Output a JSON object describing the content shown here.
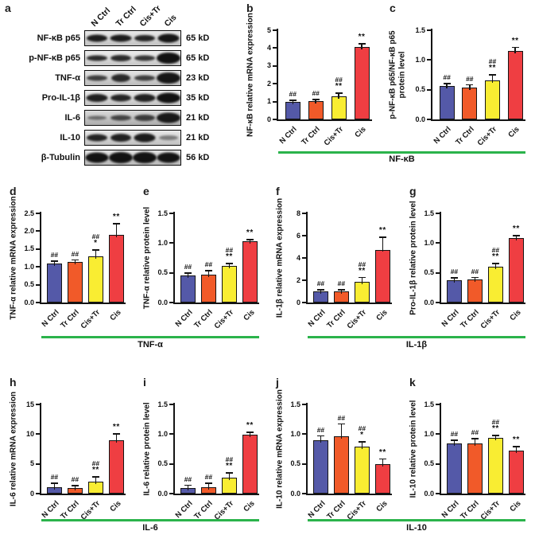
{
  "colors": {
    "bar_fill": [
      "#5459a8",
      "#f15a29",
      "#f9ed32",
      "#ef3e42"
    ],
    "bar_border": "#141414",
    "axis": "#141414",
    "underline": "#2bb34b",
    "background": "#ffffff"
  },
  "categories": [
    "N Ctrl",
    "Tr Ctrl",
    "Cis+Tr",
    "Cis"
  ],
  "panel_a": {
    "label": "a",
    "lanes": [
      "N Ctrl",
      "Tr Ctrl",
      "Cis+Tr",
      "Cis"
    ],
    "rows": [
      {
        "protein": "NF-κB p65",
        "kd": "65 kD",
        "bg": "#dedede",
        "bands": [
          [
            0.92,
            26,
            9
          ],
          [
            0.92,
            27,
            9
          ],
          [
            0.88,
            26,
            8
          ],
          [
            0.95,
            27,
            11
          ]
        ]
      },
      {
        "protein": "p-NF-κB p65",
        "kd": "65 kD",
        "bg": "#e3e3e3",
        "bands": [
          [
            0.85,
            26,
            7
          ],
          [
            0.85,
            26,
            8
          ],
          [
            0.8,
            26,
            7
          ],
          [
            0.97,
            30,
            14
          ]
        ]
      },
      {
        "protein": "TNF-α",
        "kd": "23 kD",
        "bg": "#d6d6d6",
        "bands": [
          [
            0.75,
            26,
            7
          ],
          [
            0.85,
            24,
            10
          ],
          [
            0.75,
            26,
            7
          ],
          [
            0.95,
            30,
            14
          ]
        ]
      },
      {
        "protein": "Pro-IL-1β",
        "kd": "35 kD",
        "bg": "#e0e0e0",
        "bands": [
          [
            0.9,
            27,
            10
          ],
          [
            0.88,
            26,
            9
          ],
          [
            0.9,
            27,
            10
          ],
          [
            0.97,
            30,
            13
          ]
        ]
      },
      {
        "protein": "IL-6",
        "kd": "21 kD",
        "bg": "#c6c6c6",
        "bands": [
          [
            0.5,
            24,
            5
          ],
          [
            0.7,
            26,
            7
          ],
          [
            0.75,
            26,
            8
          ],
          [
            0.93,
            30,
            13
          ]
        ]
      },
      {
        "protein": "IL-10",
        "kd": "21 kD",
        "bg": "#dcdcdc",
        "bands": [
          [
            0.88,
            26,
            9
          ],
          [
            0.9,
            26,
            10
          ],
          [
            0.92,
            27,
            11
          ],
          [
            0.45,
            24,
            6
          ]
        ]
      },
      {
        "protein": "β-Tubulin",
        "kd": "56 kD",
        "bg": "#d2d2d2",
        "bands": [
          [
            0.97,
            29,
            13
          ],
          [
            0.97,
            30,
            14
          ],
          [
            0.97,
            30,
            14
          ],
          [
            0.96,
            29,
            13
          ]
        ]
      }
    ]
  },
  "chart_data": [
    {
      "id": "b",
      "type": "bar",
      "panel_label": "b",
      "ylabel": "NF-κB relative mRNA expression",
      "ylim": [
        0,
        5
      ],
      "yticks": [
        [
          0,
          "0"
        ],
        [
          1,
          "1"
        ],
        [
          2,
          "2"
        ],
        [
          3,
          "3"
        ],
        [
          4,
          "4"
        ],
        [
          5,
          "5"
        ]
      ],
      "categories": [
        "N Ctrl",
        "Tr Ctrl",
        "Cis+Tr",
        "Cis"
      ],
      "values": [
        1.0,
        1.02,
        1.3,
        4.05
      ],
      "errors": [
        0.06,
        0.08,
        0.16,
        0.2
      ],
      "sig": [
        [
          "##"
        ],
        [
          "##"
        ],
        [
          "##",
          "**"
        ],
        [
          "**"
        ]
      ]
    },
    {
      "id": "c",
      "type": "bar",
      "panel_label": "c",
      "ylabel": "p-NF-κB p65/NF-κB p65",
      "ylabel2": "protein level",
      "ylim": [
        0,
        1.5
      ],
      "yticks": [
        [
          0,
          "0.0"
        ],
        [
          0.5,
          "0.5"
        ],
        [
          1,
          "1.0"
        ],
        [
          1.5,
          "1.5"
        ]
      ],
      "categories": [
        "N Ctrl",
        "Tr Ctrl",
        "Cis+Tr",
        "Cis"
      ],
      "values": [
        0.56,
        0.54,
        0.66,
        1.15
      ],
      "errors": [
        0.04,
        0.04,
        0.09,
        0.06
      ],
      "sig": [
        [
          "##"
        ],
        [
          "##"
        ],
        [
          "##",
          "**"
        ],
        [
          "**"
        ]
      ]
    },
    {
      "id": "d",
      "type": "bar",
      "panel_label": "d",
      "ylabel": "TNF-α relative mRNA expression",
      "ylim": [
        0,
        2.5
      ],
      "yticks": [
        [
          0,
          "0.0"
        ],
        [
          0.5,
          "0.5"
        ],
        [
          1,
          "1.0"
        ],
        [
          1.5,
          "1.5"
        ],
        [
          2,
          "2.0"
        ],
        [
          2.5,
          "2.5"
        ]
      ],
      "categories": [
        "N Ctrl",
        "Tr Ctrl",
        "Cis+Tr",
        "Cis"
      ],
      "values": [
        1.1,
        1.13,
        1.3,
        1.9
      ],
      "errors": [
        0.06,
        0.06,
        0.17,
        0.3
      ],
      "sig": [
        [
          "##"
        ],
        [
          "##"
        ],
        [
          "##",
          "*"
        ],
        [
          "**"
        ]
      ]
    },
    {
      "id": "e",
      "type": "bar",
      "panel_label": "e",
      "ylabel": "TNF-α relative protein level",
      "ylim": [
        0,
        1.5
      ],
      "yticks": [
        [
          0,
          "0.0"
        ],
        [
          0.5,
          "0.5"
        ],
        [
          1,
          "1.0"
        ],
        [
          1.5,
          "1.5"
        ]
      ],
      "categories": [
        "N Ctrl",
        "Tr Ctrl",
        "Cis+Tr",
        "Cis"
      ],
      "values": [
        0.45,
        0.47,
        0.61,
        1.03
      ],
      "errors": [
        0.04,
        0.06,
        0.05,
        0.03
      ],
      "sig": [
        [
          "##"
        ],
        [
          "##"
        ],
        [
          "##",
          "**"
        ],
        [
          "**"
        ]
      ]
    },
    {
      "id": "f",
      "type": "bar",
      "panel_label": "f",
      "ylabel": "IL-1β relative mRNA expression",
      "ylim": [
        0,
        8
      ],
      "yticks": [
        [
          0,
          "0"
        ],
        [
          2,
          "2"
        ],
        [
          4,
          "4"
        ],
        [
          6,
          "6"
        ],
        [
          8,
          "8"
        ]
      ],
      "categories": [
        "N Ctrl",
        "Tr Ctrl",
        "Cis+Tr",
        "Cis"
      ],
      "values": [
        1.0,
        1.02,
        1.85,
        4.75
      ],
      "errors": [
        0.15,
        0.12,
        0.4,
        1.1
      ],
      "sig": [
        [
          "##"
        ],
        [
          "##"
        ],
        [
          "##",
          "**"
        ],
        [
          "**"
        ]
      ]
    },
    {
      "id": "g",
      "type": "bar",
      "panel_label": "g",
      "ylabel": "Pro-IL-1β relative protein level",
      "ylim": [
        0,
        1.5
      ],
      "yticks": [
        [
          0,
          "0.0"
        ],
        [
          0.5,
          "0.5"
        ],
        [
          1,
          "1.0"
        ],
        [
          1.5,
          "1.5"
        ]
      ],
      "categories": [
        "N Ctrl",
        "Tr Ctrl",
        "Cis+Tr",
        "Cis"
      ],
      "values": [
        0.38,
        0.39,
        0.6,
        1.08
      ],
      "errors": [
        0.03,
        0.03,
        0.05,
        0.04
      ],
      "sig": [
        [
          "##"
        ],
        [
          "##"
        ],
        [
          "##",
          "**"
        ],
        [
          "**"
        ]
      ]
    },
    {
      "id": "h",
      "type": "bar",
      "panel_label": "h",
      "ylabel": "IL-6 relative mRNA expression",
      "ylim": [
        0,
        15
      ],
      "yticks": [
        [
          0,
          "0"
        ],
        [
          5,
          "5"
        ],
        [
          10,
          "10"
        ],
        [
          15,
          "15"
        ]
      ],
      "categories": [
        "N Ctrl",
        "Tr Ctrl",
        "Cis+Tr",
        "Cis"
      ],
      "values": [
        1.1,
        1.0,
        2.0,
        9.0
      ],
      "errors": [
        0.6,
        0.35,
        0.8,
        1.0
      ],
      "sig": [
        [
          "##"
        ],
        [
          "##"
        ],
        [
          "##",
          "**"
        ],
        [
          "**"
        ]
      ]
    },
    {
      "id": "i",
      "type": "bar",
      "panel_label": "i",
      "ylabel": "IL-6 relative protein level",
      "ylim": [
        0,
        1.5
      ],
      "yticks": [
        [
          0,
          "0.0"
        ],
        [
          0.5,
          "0.5"
        ],
        [
          1,
          "1.0"
        ],
        [
          1.5,
          "1.5"
        ]
      ],
      "categories": [
        "N Ctrl",
        "Tr Ctrl",
        "Cis+Tr",
        "Cis"
      ],
      "values": [
        0.1,
        0.11,
        0.27,
        0.99
      ],
      "errors": [
        0.04,
        0.06,
        0.08,
        0.04
      ],
      "sig": [
        [
          "##"
        ],
        [
          "##"
        ],
        [
          "##",
          "**"
        ],
        [
          "**"
        ]
      ]
    },
    {
      "id": "j",
      "type": "bar",
      "panel_label": "j",
      "ylabel": "IL-10 relative mRNA expression",
      "ylim": [
        0,
        1.5
      ],
      "yticks": [
        [
          0,
          "0.0"
        ],
        [
          0.5,
          "0.5"
        ],
        [
          1,
          "1.0"
        ],
        [
          1.5,
          "1.5"
        ]
      ],
      "categories": [
        "N Ctrl",
        "Tr Ctrl",
        "Cis+Tr",
        "Cis"
      ],
      "values": [
        0.9,
        0.97,
        0.79,
        0.49
      ],
      "errors": [
        0.07,
        0.2,
        0.08,
        0.09
      ],
      "sig": [
        [
          "##"
        ],
        [
          "##"
        ],
        [
          "##",
          "*"
        ],
        [
          "**"
        ]
      ]
    },
    {
      "id": "k",
      "type": "bar",
      "panel_label": "k",
      "ylabel": "IL-10 relative protein level",
      "ylim": [
        0,
        1.5
      ],
      "yticks": [
        [
          0,
          "0.0"
        ],
        [
          0.5,
          "0.5"
        ],
        [
          1,
          "1.0"
        ],
        [
          1.5,
          "1.5"
        ]
      ],
      "categories": [
        "N Ctrl",
        "Tr Ctrl",
        "Cis+Tr",
        "Cis"
      ],
      "values": [
        0.84,
        0.85,
        0.94,
        0.72
      ],
      "errors": [
        0.06,
        0.07,
        0.04,
        0.07
      ],
      "sig": [
        [
          "##"
        ],
        [
          "##"
        ],
        [
          "##",
          "**"
        ],
        [
          "**"
        ]
      ]
    }
  ],
  "group_labels": [
    {
      "id": "bc",
      "label": "NF-κB"
    },
    {
      "id": "de",
      "label": "TNF-α"
    },
    {
      "id": "fg",
      "label": "IL-1β"
    },
    {
      "id": "hi",
      "label": "IL-6"
    },
    {
      "id": "jk",
      "label": "IL-10"
    }
  ]
}
